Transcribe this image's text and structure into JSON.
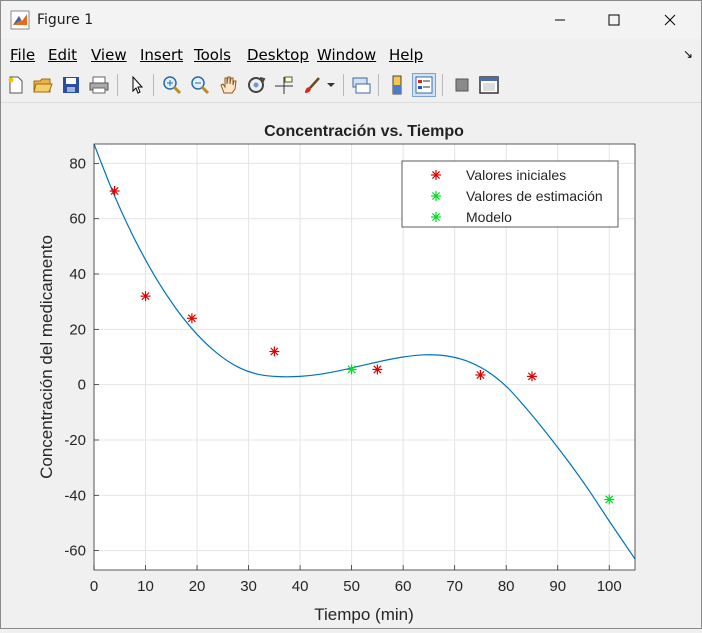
{
  "window": {
    "title": "Figure 1"
  },
  "menu": [
    "File",
    "Edit",
    "View",
    "Insert",
    "Tools",
    "Desktop",
    "Window",
    "Help"
  ],
  "toolbar": [
    "new-figure-icon",
    "open-file-icon",
    "save-icon",
    "print-icon",
    "select-arrow-icon",
    "zoom-in-icon",
    "zoom-out-icon",
    "pan-hand-icon",
    "rotate-3d-icon",
    "data-cursor-icon",
    "brush-icon",
    "link-plot-icon",
    "colorbar-icon",
    "legend-icon",
    "hide-plot-tools-icon",
    "show-plot-tools-icon"
  ],
  "chart_data": {
    "type": "scatter",
    "title": "Concentración vs. Tiempo",
    "xlabel": "Tiempo (min)",
    "ylabel": "Concentración del medicamento",
    "xlim": [
      0,
      105
    ],
    "ylim": [
      -67,
      87
    ],
    "xticks": [
      0,
      10,
      20,
      30,
      40,
      50,
      60,
      70,
      80,
      90,
      100
    ],
    "yticks": [
      -60,
      -40,
      -20,
      0,
      20,
      40,
      60,
      80
    ],
    "grid": true,
    "legend_position": "top-right",
    "series": [
      {
        "name": "Valores iniciales",
        "marker": "*",
        "color": "#e00000",
        "x": [
          4,
          10,
          19,
          35,
          55,
          75,
          85
        ],
        "y": [
          70,
          32,
          24,
          12,
          5.5,
          3.5,
          3
        ]
      },
      {
        "name": "Valores de estimación",
        "marker": "*",
        "color": "#00dd22",
        "x": [
          50,
          100
        ],
        "y": [
          5.5,
          -41.5
        ]
      },
      {
        "name": "Modelo",
        "type": "line",
        "color": "#0072bd",
        "x": [
          0,
          4,
          8,
          12,
          16,
          20,
          24,
          28,
          32,
          36,
          40,
          44,
          48,
          52,
          56,
          60,
          64,
          68,
          72,
          76,
          80,
          84,
          88,
          92,
          96,
          100,
          105
        ],
        "y": [
          87,
          68.2,
          52.2,
          38.6,
          27.3,
          18.2,
          11.2,
          6.3,
          3.7,
          2.9,
          3.0,
          3.8,
          5.2,
          6.9,
          8.6,
          10.0,
          10.8,
          10.5,
          8.8,
          5.2,
          -0.6,
          -8.8,
          -17.9,
          -27.6,
          -38.0,
          -49.3,
          -63
        ]
      }
    ]
  }
}
